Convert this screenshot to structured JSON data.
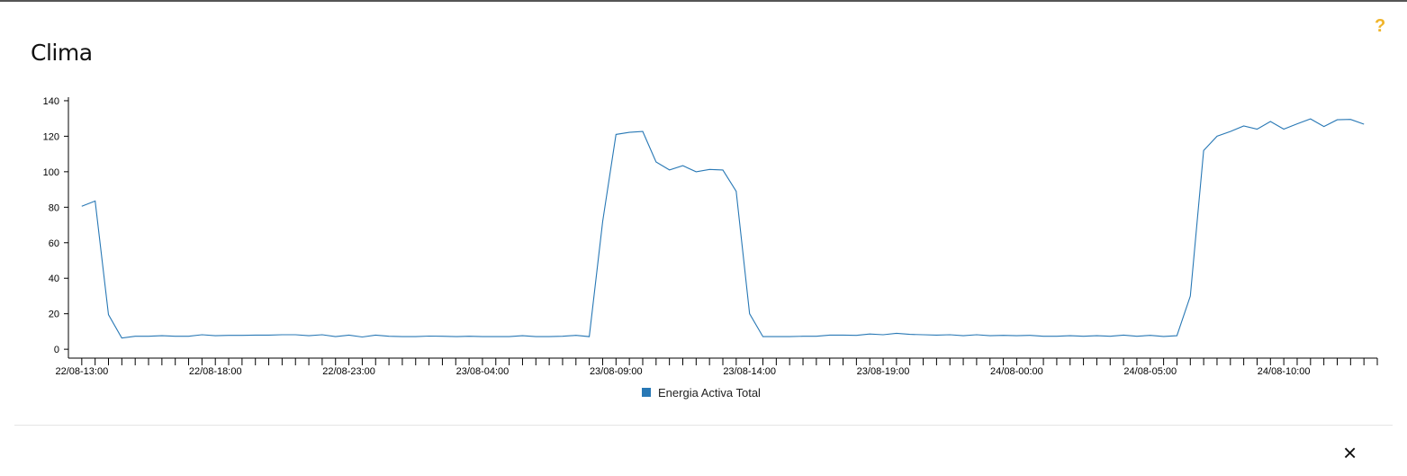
{
  "panel": {
    "title": "Clima",
    "help_icon": "question-mark-icon",
    "help_label": "?",
    "close_icon": "close-icon",
    "close_label": "×"
  },
  "colors": {
    "series": "#2878b5",
    "help": "#f0b429"
  },
  "chart_data": {
    "type": "line",
    "title": "",
    "xlabel": "",
    "ylabel": "",
    "ylim": [
      -5,
      142
    ],
    "yticks": [
      0,
      20,
      40,
      60,
      80,
      100,
      120,
      140
    ],
    "xlim": [
      "22/08-12:30",
      "24/08-13:30"
    ],
    "xtick_interval_minutes": 30,
    "xtick_labels": [
      "22/08-13:00",
      "22/08-18:00",
      "22/08-23:00",
      "23/08-04:00",
      "23/08-09:00",
      "23/08-14:00",
      "23/08-19:00",
      "24/08-00:00",
      "24/08-05:00",
      "24/08-10:00"
    ],
    "grid": false,
    "legend_position": "bottom-center",
    "series": [
      {
        "name": "Energia Activa Total",
        "color": "#2878b5",
        "x": [
          "22/08-13:00",
          "22/08-13:30",
          "22/08-14:00",
          "22/08-14:30",
          "22/08-15:00",
          "22/08-15:30",
          "22/08-16:00",
          "22/08-16:30",
          "22/08-17:00",
          "22/08-17:30",
          "22/08-18:00",
          "22/08-18:30",
          "22/08-19:00",
          "22/08-19:30",
          "22/08-20:00",
          "22/08-20:30",
          "22/08-21:00",
          "22/08-21:30",
          "22/08-22:00",
          "22/08-22:30",
          "22/08-23:00",
          "22/08-23:30",
          "23/08-00:00",
          "23/08-00:30",
          "23/08-01:00",
          "23/08-01:30",
          "23/08-02:00",
          "23/08-02:30",
          "23/08-03:00",
          "23/08-03:30",
          "23/08-04:00",
          "23/08-04:30",
          "23/08-05:00",
          "23/08-05:30",
          "23/08-06:00",
          "23/08-06:30",
          "23/08-07:00",
          "23/08-07:30",
          "23/08-08:00",
          "23/08-08:30",
          "23/08-09:00",
          "23/08-09:30",
          "23/08-10:00",
          "23/08-10:30",
          "23/08-11:00",
          "23/08-11:30",
          "23/08-12:00",
          "23/08-12:30",
          "23/08-13:00",
          "23/08-13:30",
          "23/08-14:00",
          "23/08-14:30",
          "23/08-15:00",
          "23/08-15:30",
          "23/08-16:00",
          "23/08-16:30",
          "23/08-17:00",
          "23/08-17:30",
          "23/08-18:00",
          "23/08-18:30",
          "23/08-19:00",
          "23/08-19:30",
          "23/08-20:00",
          "23/08-20:30",
          "23/08-21:00",
          "23/08-21:30",
          "23/08-22:00",
          "23/08-22:30",
          "23/08-23:00",
          "23/08-23:30",
          "24/08-00:00",
          "24/08-00:30",
          "24/08-01:00",
          "24/08-01:30",
          "24/08-02:00",
          "24/08-02:30",
          "24/08-03:00",
          "24/08-03:30",
          "24/08-04:00",
          "24/08-04:30",
          "24/08-05:00",
          "24/08-05:30",
          "24/08-06:00",
          "24/08-06:30",
          "24/08-07:00",
          "24/08-07:30",
          "24/08-08:00",
          "24/08-08:30",
          "24/08-09:00",
          "24/08-09:30",
          "24/08-10:00",
          "24/08-10:30",
          "24/08-11:00",
          "24/08-11:30",
          "24/08-12:00",
          "24/08-12:30",
          "24/08-13:00"
        ],
        "values": [
          80.5,
          83.5,
          19.5,
          6.3,
          7.3,
          7.3,
          7.6,
          7.3,
          7.3,
          8.2,
          7.6,
          7.8,
          7.8,
          8,
          8,
          8.2,
          8.2,
          7.6,
          8.2,
          7.1,
          8,
          6.9,
          8,
          7.3,
          7.1,
          7.1,
          7.4,
          7.3,
          7.1,
          7.3,
          7.1,
          7.1,
          7.1,
          7.6,
          7.1,
          7.1,
          7.3,
          7.8,
          7.1,
          72,
          121,
          122.2,
          122.7,
          105.5,
          101,
          103.4,
          100,
          101.3,
          101,
          89,
          20,
          7.1,
          7.1,
          7.1,
          7.3,
          7.3,
          8,
          8,
          7.8,
          8.6,
          8.2,
          9,
          8.4,
          8.2,
          8,
          8.2,
          7.6,
          8.2,
          7.6,
          7.8,
          7.6,
          7.8,
          7.3,
          7.3,
          7.6,
          7.3,
          7.6,
          7.3,
          8,
          7.3,
          7.8,
          7.2,
          7.6,
          30,
          112,
          120,
          122.7,
          125.8,
          124,
          128.3,
          124,
          127,
          129.8,
          125.5,
          129.3,
          129.5,
          126.8
        ]
      }
    ]
  }
}
